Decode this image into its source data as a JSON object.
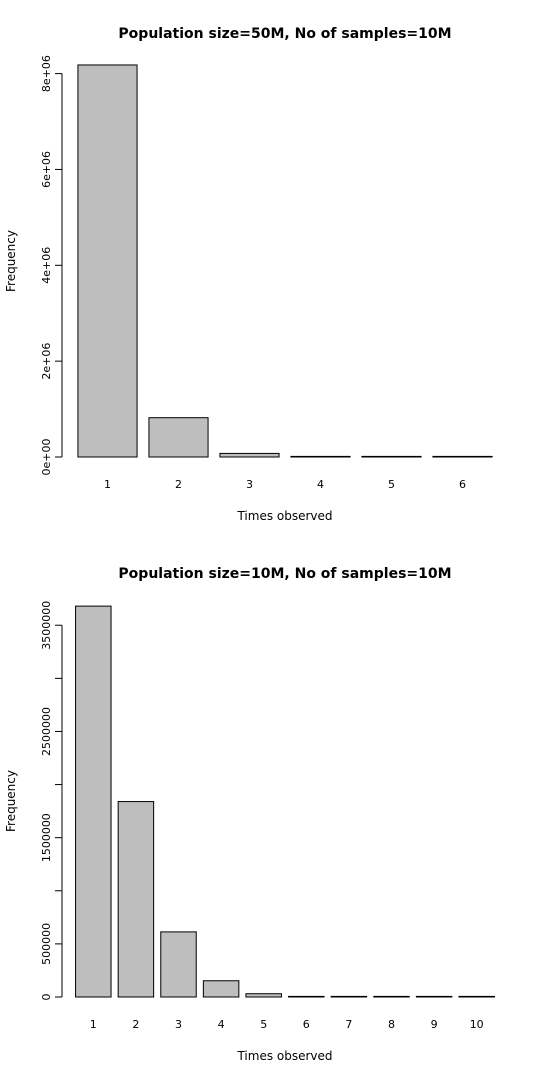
{
  "chart_data": [
    {
      "type": "bar",
      "title": "Population size=50M, No of samples=10M",
      "xlabel": "Times observed",
      "ylabel": "Frequency",
      "categories": [
        "1",
        "2",
        "3",
        "4",
        "5",
        "6"
      ],
      "values": [
        8180000,
        820000,
        75000,
        8000,
        600,
        50
      ],
      "ylim": [
        0,
        8200000
      ],
      "yticks": [
        0,
        2000000,
        4000000,
        6000000,
        8000000
      ],
      "ytick_labels": [
        "0e+00",
        "2e+06",
        "4e+06",
        "6e+06",
        "8e+06"
      ],
      "bar_color": "#bebebe",
      "grid": false
    },
    {
      "type": "bar",
      "title": "Population size=10M, No of samples=10M",
      "xlabel": "Times observed",
      "ylabel": "Frequency",
      "categories": [
        "1",
        "2",
        "3",
        "4",
        "5",
        "6",
        "7",
        "8",
        "9",
        "10"
      ],
      "values": [
        3680000,
        1840000,
        613000,
        153000,
        31000,
        5100,
        730,
        90,
        10,
        1
      ],
      "ylim": [
        0,
        3700000
      ],
      "yticks": [
        0,
        500000,
        1000000,
        1500000,
        2000000,
        2500000,
        3000000,
        3500000
      ],
      "ytick_labels": [
        "0",
        "500000",
        "",
        "1500000",
        "",
        "2500000",
        "",
        "3500000"
      ],
      "bar_color": "#bebebe",
      "grid": false
    }
  ]
}
